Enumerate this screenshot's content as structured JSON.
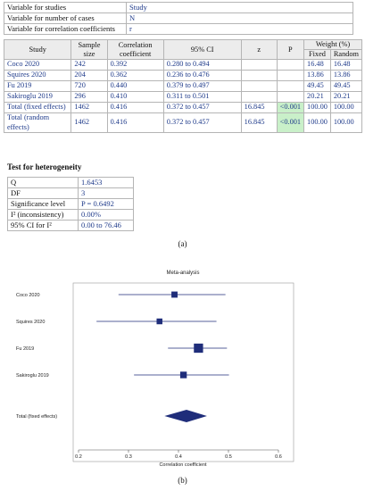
{
  "variables": [
    {
      "label": "Variable for studies",
      "value": "Study"
    },
    {
      "label": "Variable for number of cases",
      "value": "N"
    },
    {
      "label": "Variable for correlation coefficients",
      "value": "r"
    }
  ],
  "results_table": {
    "headers": {
      "study": "Study",
      "sample_size": "Sample size",
      "correlation": "Correlation coefficient",
      "ci": "95% CI",
      "z": "z",
      "p": "P",
      "weight": "Weight (%)",
      "fixed": "Fixed",
      "random": "Random"
    },
    "rows": [
      {
        "study": "Coco 2020",
        "n": "242",
        "r": "0.392",
        "ci": "0.280 to 0.494",
        "z": "",
        "p": "",
        "fixed": "16.48",
        "random": "16.48"
      },
      {
        "study": "Squires 2020",
        "n": "204",
        "r": "0.362",
        "ci": "0.236 to 0.476",
        "z": "",
        "p": "",
        "fixed": "13.86",
        "random": "13.86"
      },
      {
        "study": "Fu 2019",
        "n": "720",
        "r": "0.440",
        "ci": "0.379 to 0.497",
        "z": "",
        "p": "",
        "fixed": "49.45",
        "random": "49.45"
      },
      {
        "study": "Sakiroglu 2019",
        "n": "296",
        "r": "0.410",
        "ci": "0.311 to 0.501",
        "z": "",
        "p": "",
        "fixed": "20.21",
        "random": "20.21"
      },
      {
        "study": "Total (fixed effects)",
        "n": "1462",
        "r": "0.416",
        "ci": "0.372 to 0.457",
        "z": "16.845",
        "p": "<0.001",
        "fixed": "100.00",
        "random": "100.00"
      },
      {
        "study": "Total (random effects)",
        "n": "1462",
        "r": "0.416",
        "ci": "0.372 to 0.457",
        "z": "16.845",
        "p": "<0.001",
        "fixed": "100.00",
        "random": "100.00"
      }
    ]
  },
  "heterogeneity": {
    "title": "Test for heterogeneity",
    "rows": [
      {
        "label": "Q",
        "value": "1.6453"
      },
      {
        "label": "DF",
        "value": "3"
      },
      {
        "label": "Significance level",
        "value": "P = 0.6492"
      },
      {
        "label": "I² (inconsistency)",
        "value": "0.00%"
      },
      {
        "label": "95% CI for I²",
        "value": "0.00 to 76.46"
      }
    ]
  },
  "captions": {
    "a": "(a)",
    "b": "(b)"
  },
  "chart_data": {
    "type": "forest",
    "title": "Meta-analysis",
    "xlabel": "Correlation coefficient",
    "xlim": [
      0.2,
      0.6
    ],
    "xticks": [
      0.2,
      0.3,
      0.4,
      0.5,
      0.6
    ],
    "grid": false,
    "studies": [
      {
        "label": "Coco 2020",
        "r": 0.392,
        "lower": 0.28,
        "upper": 0.494,
        "weight": 16.48
      },
      {
        "label": "Squires 2020",
        "r": 0.362,
        "lower": 0.236,
        "upper": 0.476,
        "weight": 13.86
      },
      {
        "label": "Fu 2019",
        "r": 0.44,
        "lower": 0.379,
        "upper": 0.497,
        "weight": 49.45
      },
      {
        "label": "Sakiroglu 2019",
        "r": 0.41,
        "lower": 0.311,
        "upper": 0.501,
        "weight": 20.21
      }
    ],
    "summary": {
      "label": "Total (fixed effects)",
      "r": 0.416,
      "lower": 0.372,
      "upper": 0.457
    },
    "colors": {
      "marker": "#1f2d7a",
      "line": "#1f2d7a",
      "axis": "#555555"
    }
  }
}
